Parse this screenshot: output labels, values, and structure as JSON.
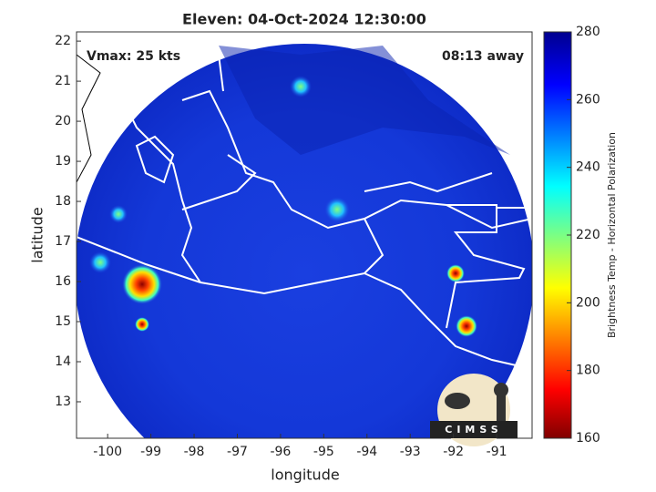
{
  "chart_data": {
    "type": "map",
    "title": "Eleven: 04-Oct-2024 12:30:00",
    "annotations": [
      "Vmax: 25 kts",
      "08:13 away"
    ],
    "x_label": "longitude",
    "y_label": "latitude",
    "xlim": [
      -100.72,
      -90.18
    ],
    "ylim": [
      12.09,
      22.23
    ],
    "xticks": [
      -100,
      -99,
      -98,
      -97,
      -96,
      -95,
      -94,
      -93,
      -92,
      -91
    ],
    "yticks": [
      13,
      14,
      15,
      16,
      17,
      18,
      19,
      20,
      21,
      22
    ],
    "colorbar": {
      "label": "Brightness Temp - Horizontal Polarization",
      "lim": [
        160,
        280
      ],
      "ticks": [
        160,
        180,
        200,
        220,
        240,
        260,
        280
      ]
    },
    "logo": "CIMSS"
  }
}
